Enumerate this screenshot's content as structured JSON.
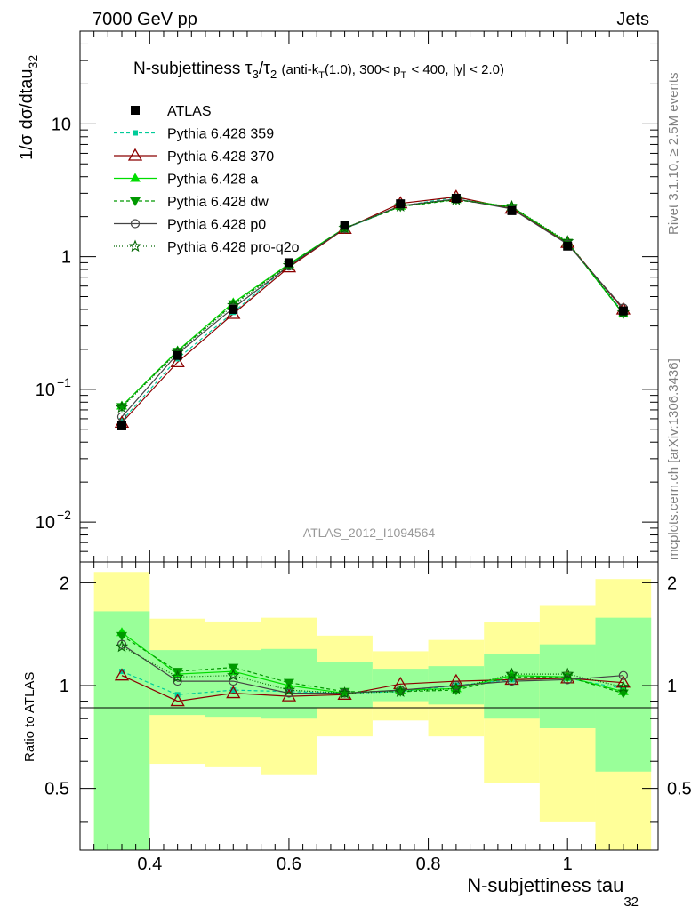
{
  "header": {
    "left": "7000 GeV pp",
    "right": "Jets"
  },
  "side_labels": {
    "rivet": "Rivet 3.1.10, ≥ 2.5M events",
    "mcplots": "mcplots.cern.ch [arXiv:1306.3436]"
  },
  "analysis_id": "ATLAS_2012_I1094564",
  "chart_data": [
    {
      "type": "line",
      "panel": "main",
      "title": {
        "main": "N-subjettiness",
        "tau_a": "τ",
        "sub3": "3",
        "slash": "/",
        "tau_b": "τ",
        "sub2": "2",
        "cuts_a": "(anti-k",
        "sub_t1": "T",
        "cuts_b": "(1.0), 300< p",
        "sub_t2": "T",
        "cuts_c": "< 400, |y| < 2.0)"
      },
      "ylabel": {
        "main": "1/σ dσ/dtau",
        "sub": "32"
      },
      "y_scale": "log",
      "ylim": [
        0.005,
        50
      ],
      "y_ticks": [
        {
          "value": 0.01,
          "base": "10",
          "exp": "−2"
        },
        {
          "value": 0.1,
          "base": "10",
          "exp": "−1"
        },
        {
          "value": 1,
          "base": "1",
          "exp": ""
        },
        {
          "value": 10,
          "base": "10",
          "exp": ""
        }
      ],
      "legend_position": "top-left",
      "x": [
        0.36,
        0.44,
        0.52,
        0.6,
        0.68,
        0.76,
        0.84,
        0.92,
        1.0,
        1.08
      ],
      "series": [
        {
          "name": "ATLAS",
          "color": "#000000",
          "marker": "square",
          "dash": "none",
          "values": [
            0.053,
            0.18,
            0.4,
            0.9,
            1.72,
            2.5,
            2.75,
            2.22,
            1.2,
            0.39
          ]
        },
        {
          "name": "Pythia 6.428 359",
          "color": "#00cc99",
          "marker": "small-square",
          "dash": "4,3",
          "values": [
            0.058,
            0.17,
            0.38,
            0.86,
            1.62,
            2.4,
            2.8,
            2.3,
            1.27,
            0.38
          ]
        },
        {
          "name": "Pythia 6.428 370",
          "color": "#8b0000",
          "marker": "open-triangle",
          "dash": "none",
          "values": [
            0.056,
            0.16,
            0.37,
            0.83,
            1.62,
            2.52,
            2.82,
            2.3,
            1.27,
            0.4
          ]
        },
        {
          "name": "Pythia 6.428 a",
          "color": "#00dd00",
          "marker": "triangle",
          "dash": "none",
          "values": [
            0.075,
            0.195,
            0.45,
            0.88,
            1.64,
            2.4,
            2.7,
            2.37,
            1.28,
            0.37
          ]
        },
        {
          "name": "Pythia 6.428 dw",
          "color": "#009900",
          "marker": "down-triangle",
          "dash": "4,3",
          "values": [
            0.074,
            0.193,
            0.44,
            0.87,
            1.63,
            2.38,
            2.68,
            2.35,
            1.28,
            0.37
          ]
        },
        {
          "name": "Pythia 6.428 p0",
          "color": "#444444",
          "marker": "open-circle",
          "dash": "none",
          "values": [
            0.062,
            0.185,
            0.41,
            0.85,
            1.63,
            2.42,
            2.72,
            2.29,
            1.24,
            0.41
          ]
        },
        {
          "name": "Pythia 6.428 pro-q2o",
          "color": "#006600",
          "marker": "open-star",
          "dash": "1,2",
          "values": [
            0.073,
            0.19,
            0.43,
            0.86,
            1.64,
            2.4,
            2.69,
            2.38,
            1.3,
            0.38
          ]
        }
      ]
    },
    {
      "type": "line",
      "panel": "ratio",
      "ylabel": "Ratio to ATLAS",
      "xlabel": {
        "main": "N-subjettiness tau",
        "sub": "32"
      },
      "ylim": [
        0.33,
        2.3
      ],
      "xlim": [
        0.3,
        1.13
      ],
      "x_ticks": [
        "0.4",
        "0.6",
        "0.8",
        "1"
      ],
      "y_ticks": [
        "0.5",
        "1",
        "2"
      ],
      "bins": [
        {
          "lo": 0.32,
          "hi": 0.4,
          "stat": [
            0.0,
            1.65
          ],
          "total": [
            0.0,
            2.15
          ]
        },
        {
          "lo": 0.4,
          "hi": 0.48,
          "stat": [
            0.82,
            1.27
          ],
          "total": [
            0.59,
            1.57
          ]
        },
        {
          "lo": 0.48,
          "hi": 0.56,
          "stat": [
            0.81,
            1.27
          ],
          "total": [
            0.58,
            1.54
          ]
        },
        {
          "lo": 0.56,
          "hi": 0.64,
          "stat": [
            0.8,
            1.28
          ],
          "total": [
            0.55,
            1.58
          ]
        },
        {
          "lo": 0.64,
          "hi": 0.72,
          "stat": [
            0.86,
            1.17
          ],
          "total": [
            0.71,
            1.4
          ]
        },
        {
          "lo": 0.72,
          "hi": 0.8,
          "stat": [
            0.9,
            1.12
          ],
          "total": [
            0.79,
            1.26
          ]
        },
        {
          "lo": 0.8,
          "hi": 0.88,
          "stat": [
            0.88,
            1.14
          ],
          "total": [
            0.71,
            1.36
          ]
        },
        {
          "lo": 0.88,
          "hi": 0.96,
          "stat": [
            0.8,
            1.24
          ],
          "total": [
            0.52,
            1.53
          ]
        },
        {
          "lo": 0.96,
          "hi": 1.04,
          "stat": [
            0.75,
            1.32
          ],
          "total": [
            0.4,
            1.72
          ]
        },
        {
          "lo": 1.04,
          "hi": 1.12,
          "stat": [
            0.56,
            1.58
          ],
          "total": [
            0.0,
            2.05
          ]
        }
      ],
      "series": [
        {
          "name": "Pythia 6.428 359",
          "color": "#00cc99",
          "marker": "small-square",
          "dash": "4,3",
          "values": [
            1.1,
            0.94,
            0.97,
            0.96,
            0.95,
            0.96,
            1.0,
            1.04,
            1.05,
            0.98
          ]
        },
        {
          "name": "Pythia 6.428 370",
          "color": "#8b0000",
          "marker": "open-triangle",
          "dash": "none",
          "values": [
            1.07,
            0.9,
            0.95,
            0.93,
            0.94,
            1.01,
            1.03,
            1.04,
            1.05,
            1.02
          ]
        },
        {
          "name": "Pythia 6.428 a",
          "color": "#00dd00",
          "marker": "triangle",
          "dash": "none",
          "values": [
            1.43,
            1.08,
            1.1,
            1.0,
            0.95,
            0.97,
            0.98,
            1.07,
            1.06,
            0.96
          ]
        },
        {
          "name": "Pythia 6.428 dw",
          "color": "#009900",
          "marker": "down-triangle",
          "dash": "4,3",
          "values": [
            1.4,
            1.1,
            1.13,
            1.02,
            0.96,
            0.96,
            0.97,
            1.06,
            1.06,
            0.95
          ]
        },
        {
          "name": "Pythia 6.428 p0",
          "color": "#444444",
          "marker": "open-circle",
          "dash": "none",
          "values": [
            1.32,
            1.03,
            1.03,
            0.95,
            0.95,
            0.97,
            1.0,
            1.03,
            1.04,
            1.07
          ]
        },
        {
          "name": "Pythia 6.428 pro-q2o",
          "color": "#006600",
          "marker": "open-star",
          "dash": "1,2",
          "values": [
            1.3,
            1.06,
            1.07,
            0.97,
            0.95,
            0.96,
            0.98,
            1.08,
            1.08,
            0.99
          ]
        }
      ]
    }
  ]
}
